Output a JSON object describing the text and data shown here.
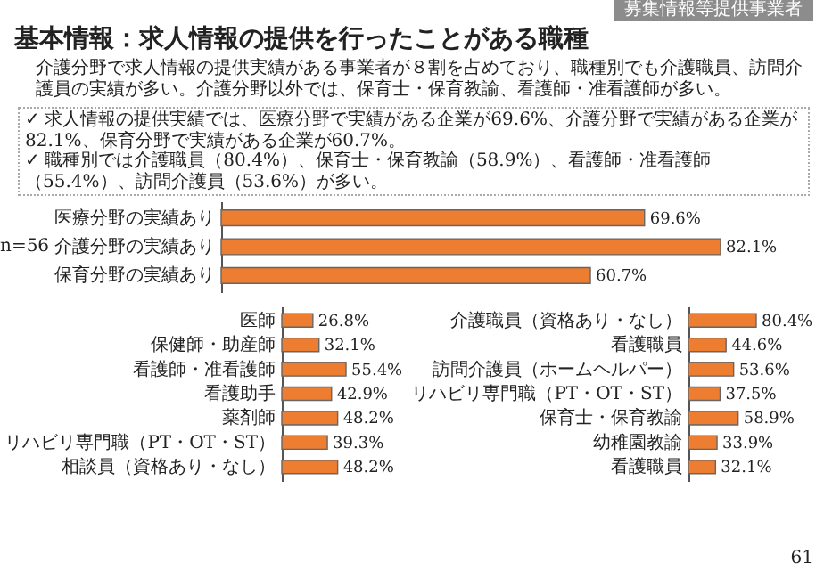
{
  "chart_data": [
    {
      "type": "bar",
      "orientation": "horizontal",
      "title": "基本情報：求人情報の提供を行ったことがある職種",
      "subtitle": "介護分野で求人情報の提供実績がある事業者が８割を占めており、職種別でも介護職員、訪問介護員の実績が多い。介護分野以外では、保育士・保育教諭、看護師・准看護師が多い。",
      "annotations": [
        "募集情報等提供事業者",
        "✓ 求人情報の提供実績では、医療分野で実績がある企業が69.6%、介護分野で実績がある企業が82.1%、保育分野で実績がある企業が60.7%。",
        "✓ 職種別では介護職員（80.4%）、保育士・保育教諭（58.9%）、看護師・准看護師（55.4%）、訪問介護員（53.6%）が多い。",
        "n=56",
        "61"
      ],
      "categories": [
        "医療分野の実績あり",
        "介護分野の実績あり",
        "保育分野の実績あり"
      ],
      "values": [
        69.6,
        82.1,
        60.7
      ],
      "value_labels": [
        "69.6%",
        "82.1%",
        "60.7%"
      ],
      "color": "#ed7d31"
    },
    {
      "type": "bar",
      "orientation": "horizontal",
      "categories": [
        "医師",
        "保健師・助産師",
        "看護師・准看護師",
        "看護助手",
        "薬剤師",
        "リハビリ専門職（PT・OT・ST）",
        "相談員（資格あり・なし）"
      ],
      "values": [
        26.8,
        32.1,
        55.4,
        42.9,
        48.2,
        39.3,
        48.2
      ],
      "value_labels": [
        "26.8%",
        "32.1%",
        "55.4%",
        "42.9%",
        "48.2%",
        "39.3%",
        "48.2%"
      ],
      "color": "#ed7d31"
    },
    {
      "type": "bar",
      "orientation": "horizontal",
      "categories": [
        "介護職員（資格あり・なし）",
        "看護職員",
        "訪問介護員（ホームヘルパー）",
        "リハビリ専門職（PT・OT・ST）",
        "保育士・保育教諭",
        "幼稚園教諭",
        "看護職員"
      ],
      "values": [
        80.4,
        44.6,
        53.6,
        37.5,
        58.9,
        33.9,
        32.1
      ],
      "value_labels": [
        "80.4%",
        "44.6%",
        "53.6%",
        "37.5%",
        "58.9%",
        "33.9%",
        "32.1%"
      ],
      "color": "#ed7d31"
    }
  ]
}
